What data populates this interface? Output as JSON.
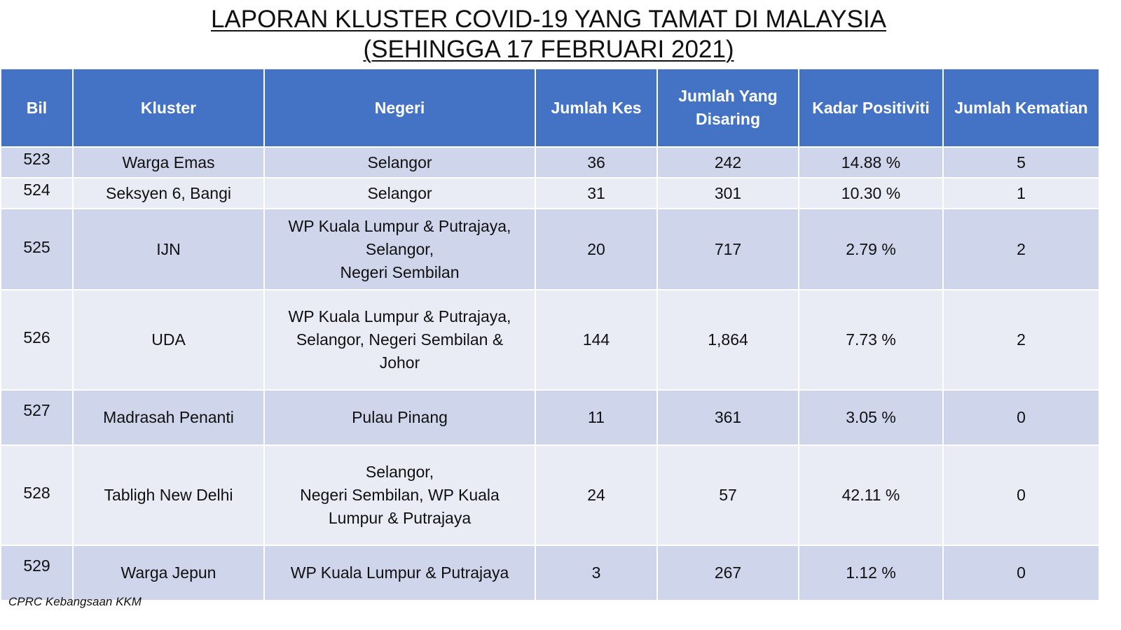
{
  "title": {
    "line1": "LAPORAN KLUSTER COVID-19 YANG TAMAT DI MALAYSIA",
    "line2": "(SEHINGGA 17 FEBRUARI 2021)"
  },
  "table": {
    "headers": {
      "bil": "Bil",
      "kluster": "Kluster",
      "negeri": "Negeri",
      "jumlah_kes": "Jumlah Kes",
      "jumlah_disaring": "Jumlah Yang\nDisaring",
      "kadar_positiviti": "Kadar Positiviti",
      "jumlah_kematian": "Jumlah Kematian"
    },
    "rows": [
      {
        "bil": "523",
        "kluster": "Warga Emas",
        "negeri": "Selangor",
        "kes": "36",
        "disaring": "242",
        "positiviti": "14.88 %",
        "kematian": "5"
      },
      {
        "bil": "524",
        "kluster": "Seksyen 6, Bangi",
        "negeri": "Selangor",
        "kes": "31",
        "disaring": "301",
        "positiviti": "10.30 %",
        "kematian": "1"
      },
      {
        "bil": "525",
        "kluster": "IJN",
        "negeri": "WP Kuala Lumpur & Putrajaya,\nSelangor,\nNegeri Sembilan",
        "kes": "20",
        "disaring": "717",
        "positiviti": "2.79 %",
        "kematian": "2"
      },
      {
        "bil": "526",
        "kluster": "UDA",
        "negeri": "WP Kuala Lumpur & Putrajaya,\nSelangor, Negeri Sembilan &\nJohor",
        "kes": "144",
        "disaring": "1,864",
        "positiviti": "7.73 %",
        "kematian": "2"
      },
      {
        "bil": "527",
        "kluster": "Madrasah Penanti",
        "negeri": "Pulau Pinang",
        "kes": "11",
        "disaring": "361",
        "positiviti": "3.05 %",
        "kematian": "0"
      },
      {
        "bil": "528",
        "kluster": "Tabligh New Delhi",
        "negeri": "Selangor,\nNegeri Sembilan, WP Kuala\nLumpur & Putrajaya",
        "kes": "24",
        "disaring": "57",
        "positiviti": "42.11 %",
        "kematian": "0"
      },
      {
        "bil": "529",
        "kluster": "Warga Jepun",
        "negeri": "WP Kuala Lumpur & Putrajaya",
        "kes": "3",
        "disaring": "267",
        "positiviti": "1.12 %",
        "kematian": "0"
      }
    ]
  },
  "source": "CPRC Kebangsaan KKM",
  "colors": {
    "header_bg": "#4472c4",
    "row_odd": "#cfd5ea",
    "row_even": "#e9ebf5"
  }
}
